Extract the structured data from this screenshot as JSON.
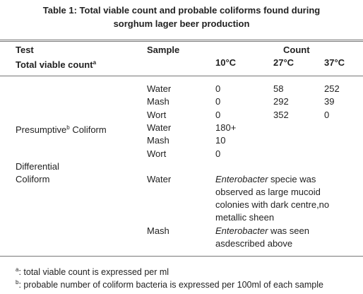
{
  "table": {
    "title": [
      "Table 1: Total viable count and probable coliforms found during",
      "sorghum lager beer production"
    ],
    "header": {
      "test": "Test",
      "sample": "Sample",
      "count": "Count",
      "tvc": "Total viable count",
      "tvc_sup": "a",
      "temps": [
        "10°C",
        "27°C",
        "37°C"
      ]
    },
    "rows": [
      {
        "sample": "Water",
        "values": [
          "0",
          "58",
          "252"
        ]
      },
      {
        "sample": "Mash",
        "values": [
          "0",
          "292",
          "39"
        ]
      },
      {
        "sample": "Wort",
        "values": [
          "0",
          "352",
          "0"
        ]
      },
      {
        "test": "Presumptive",
        "test_sup": "b",
        "test_rest": " Coliform",
        "sample": "Water",
        "values": [
          "180+"
        ]
      },
      {
        "sample": "Mash",
        "values": [
          "10"
        ]
      },
      {
        "sample": "Wort",
        "values": [
          "0"
        ]
      }
    ],
    "differential": {
      "test": [
        "Differential",
        "Coliform"
      ],
      "rows": [
        {
          "sample": "Water",
          "italic": "Enterobacter",
          "first": " specie was",
          "lines": [
            "observed as large mucoid",
            "colonies with dark centre,no",
            "metallic sheen"
          ]
        },
        {
          "sample": "Mash",
          "italic": "Enterobacter",
          "first": " was seen",
          "lines": [
            "asdescribed above"
          ]
        }
      ]
    },
    "footnotes": [
      {
        "sup": "a",
        "text": ": total viable count is expressed per ml"
      },
      {
        "sup": "b",
        "text": ": probable number of coliform bacteria is expressed per 100ml of each sample"
      }
    ]
  }
}
